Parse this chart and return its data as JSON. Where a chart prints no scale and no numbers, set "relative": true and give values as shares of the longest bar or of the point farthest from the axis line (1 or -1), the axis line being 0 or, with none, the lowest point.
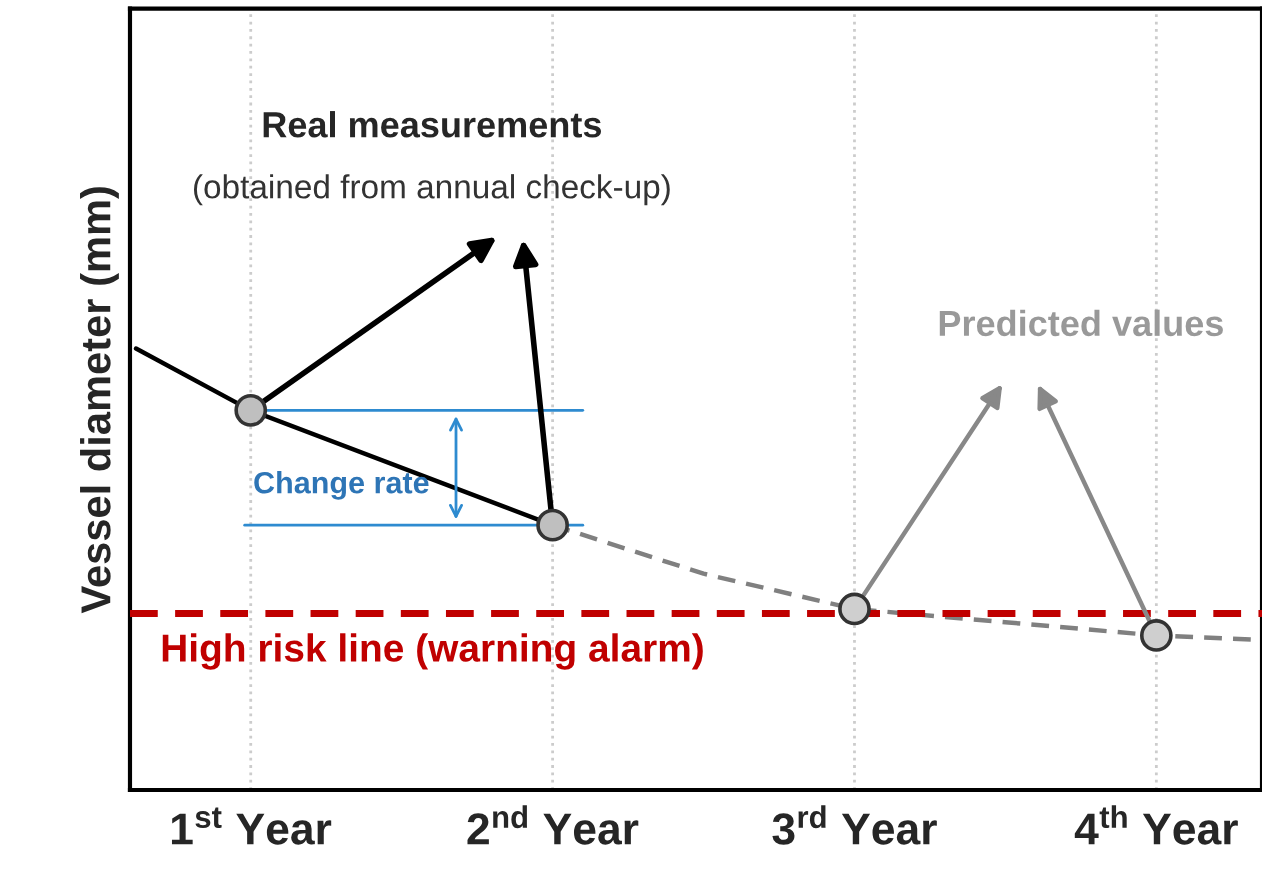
{
  "chart_data": {
    "type": "line",
    "relative": true,
    "ylabel": "Vessel diameter (mm)",
    "xlim": [
      0.6,
      4.35
    ],
    "xticks": [
      {
        "value": 1,
        "label": "1$^{st}$ Year"
      },
      {
        "value": 2,
        "label": "2$^{nd}$ Year"
      },
      {
        "value": 3,
        "label": "3$^{rd}$ Year"
      },
      {
        "value": 4,
        "label": "4$^{th}$ Year"
      }
    ],
    "grid": "x",
    "series": [
      {
        "color": "#000000",
        "line_style": "solid",
        "marker": "none",
        "x": [
          0.62,
          1,
          2
        ],
        "values": [
          1.0,
          0.86,
          0.6
        ]
      },
      {
        "color": "#808080",
        "line_style": "dashed",
        "marker": "none",
        "x": [
          2,
          2.5,
          3,
          3.5,
          4,
          4.34
        ],
        "values": [
          0.6,
          0.49,
          0.41,
          0.38,
          0.35,
          0.34
        ]
      },
      {
        "type": "scatter",
        "color": "#bfbfbf",
        "marker": "circle",
        "x": [
          1,
          2
        ],
        "values": [
          0.86,
          0.6
        ]
      },
      {
        "type": "scatter",
        "color": "#cfcfcf",
        "marker": "circle",
        "x": [
          3,
          4
        ],
        "values": [
          0.41,
          0.35
        ]
      }
    ],
    "ref_lines": [
      {
        "axis": "y",
        "value": 0.4,
        "label": "High risk line (warning alarm)",
        "color": "#c00000",
        "line_style": "dashed"
      }
    ],
    "annotations": [
      "Real measurements",
      "(obtained from annual check-up)",
      "Predicted values",
      "Change rate"
    ]
  }
}
